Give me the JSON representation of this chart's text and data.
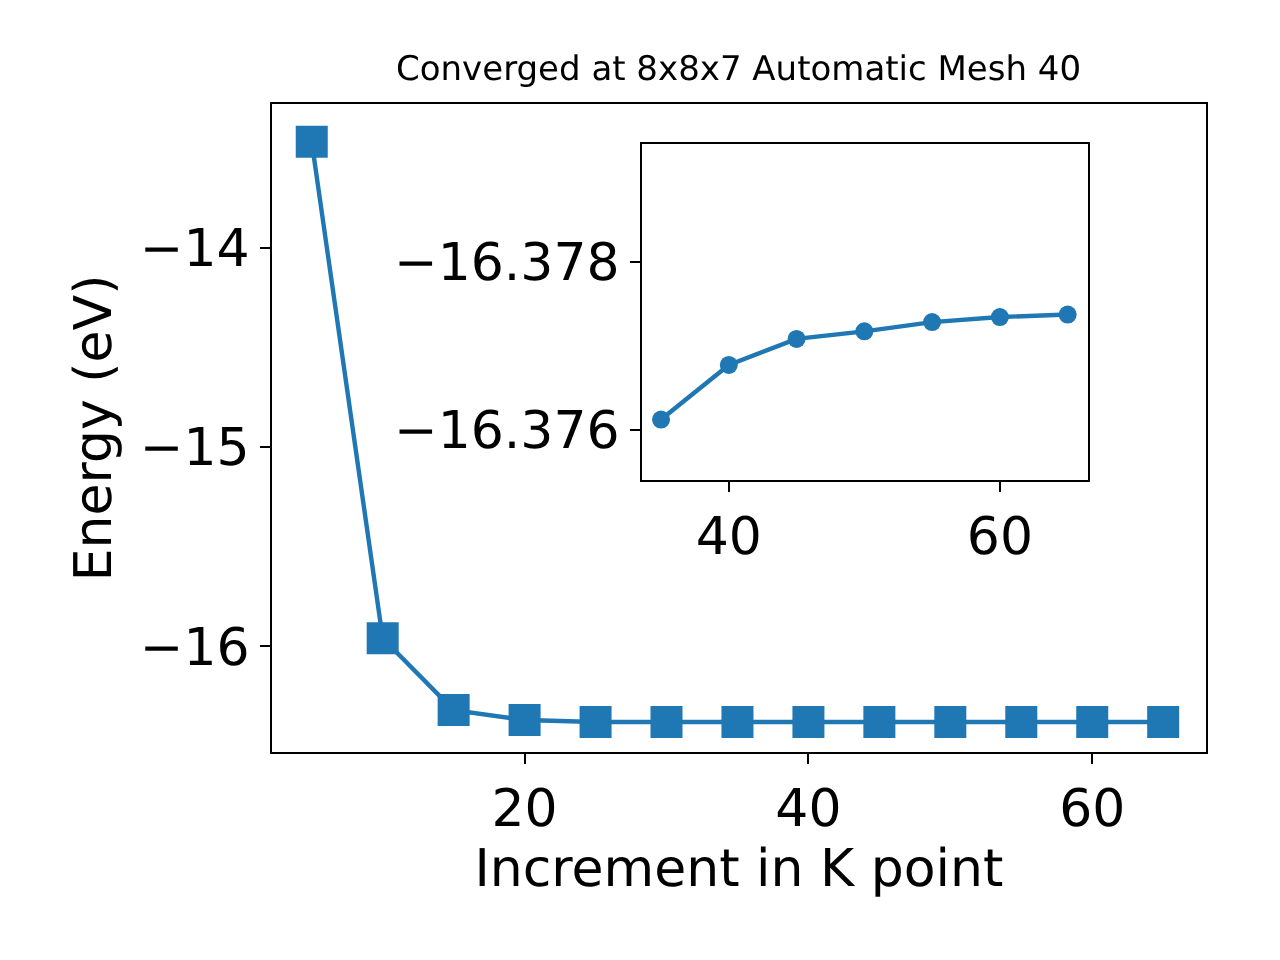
{
  "chart_data": [
    {
      "type": "line",
      "title": "Converged at 8x8x7 Automatic Mesh 40",
      "xlabel": "Increment in K point",
      "ylabel": "Energy (eV)",
      "x": [
        5,
        10,
        15,
        20,
        25,
        30,
        35,
        40,
        45,
        50,
        55,
        60,
        65
      ],
      "series": [
        {
          "color": "#1f77b4",
          "values": [
            -13.47,
            -15.96,
            -16.32,
            -16.37,
            -16.38,
            -16.38,
            -16.38,
            -16.38,
            -16.38,
            -16.38,
            -16.38,
            -16.38,
            -16.38
          ]
        }
      ],
      "xlim": [
        2.2,
        68.0
      ],
      "ylim": [
        -16.53,
        -13.28
      ],
      "xticks": [
        20,
        40,
        60
      ],
      "yticks": [
        {
          "value": -16,
          "label": "−16"
        },
        {
          "value": -15,
          "label": "−15"
        },
        {
          "value": -14,
          "label": "−14"
        }
      ],
      "marker": "square",
      "line_style": "solid"
    },
    {
      "type": "line",
      "x": [
        35,
        40,
        45,
        50,
        55,
        60,
        65
      ],
      "series": [
        {
          "color": "#1f77b4",
          "values": [
            -16.37612,
            -16.37677,
            -16.37708,
            -16.37717,
            -16.37728,
            -16.37734,
            -16.37737
          ]
        }
      ],
      "xlim": [
        33.6,
        66.5
      ],
      "ylim": [
        -16.3754,
        -16.3794
      ],
      "xticks": [
        40,
        60
      ],
      "yticks": [
        {
          "value": -16.376,
          "label": "−16.376"
        },
        {
          "value": -16.378,
          "label": "−16.378"
        }
      ],
      "marker": "circle",
      "line_style": "solid"
    }
  ]
}
